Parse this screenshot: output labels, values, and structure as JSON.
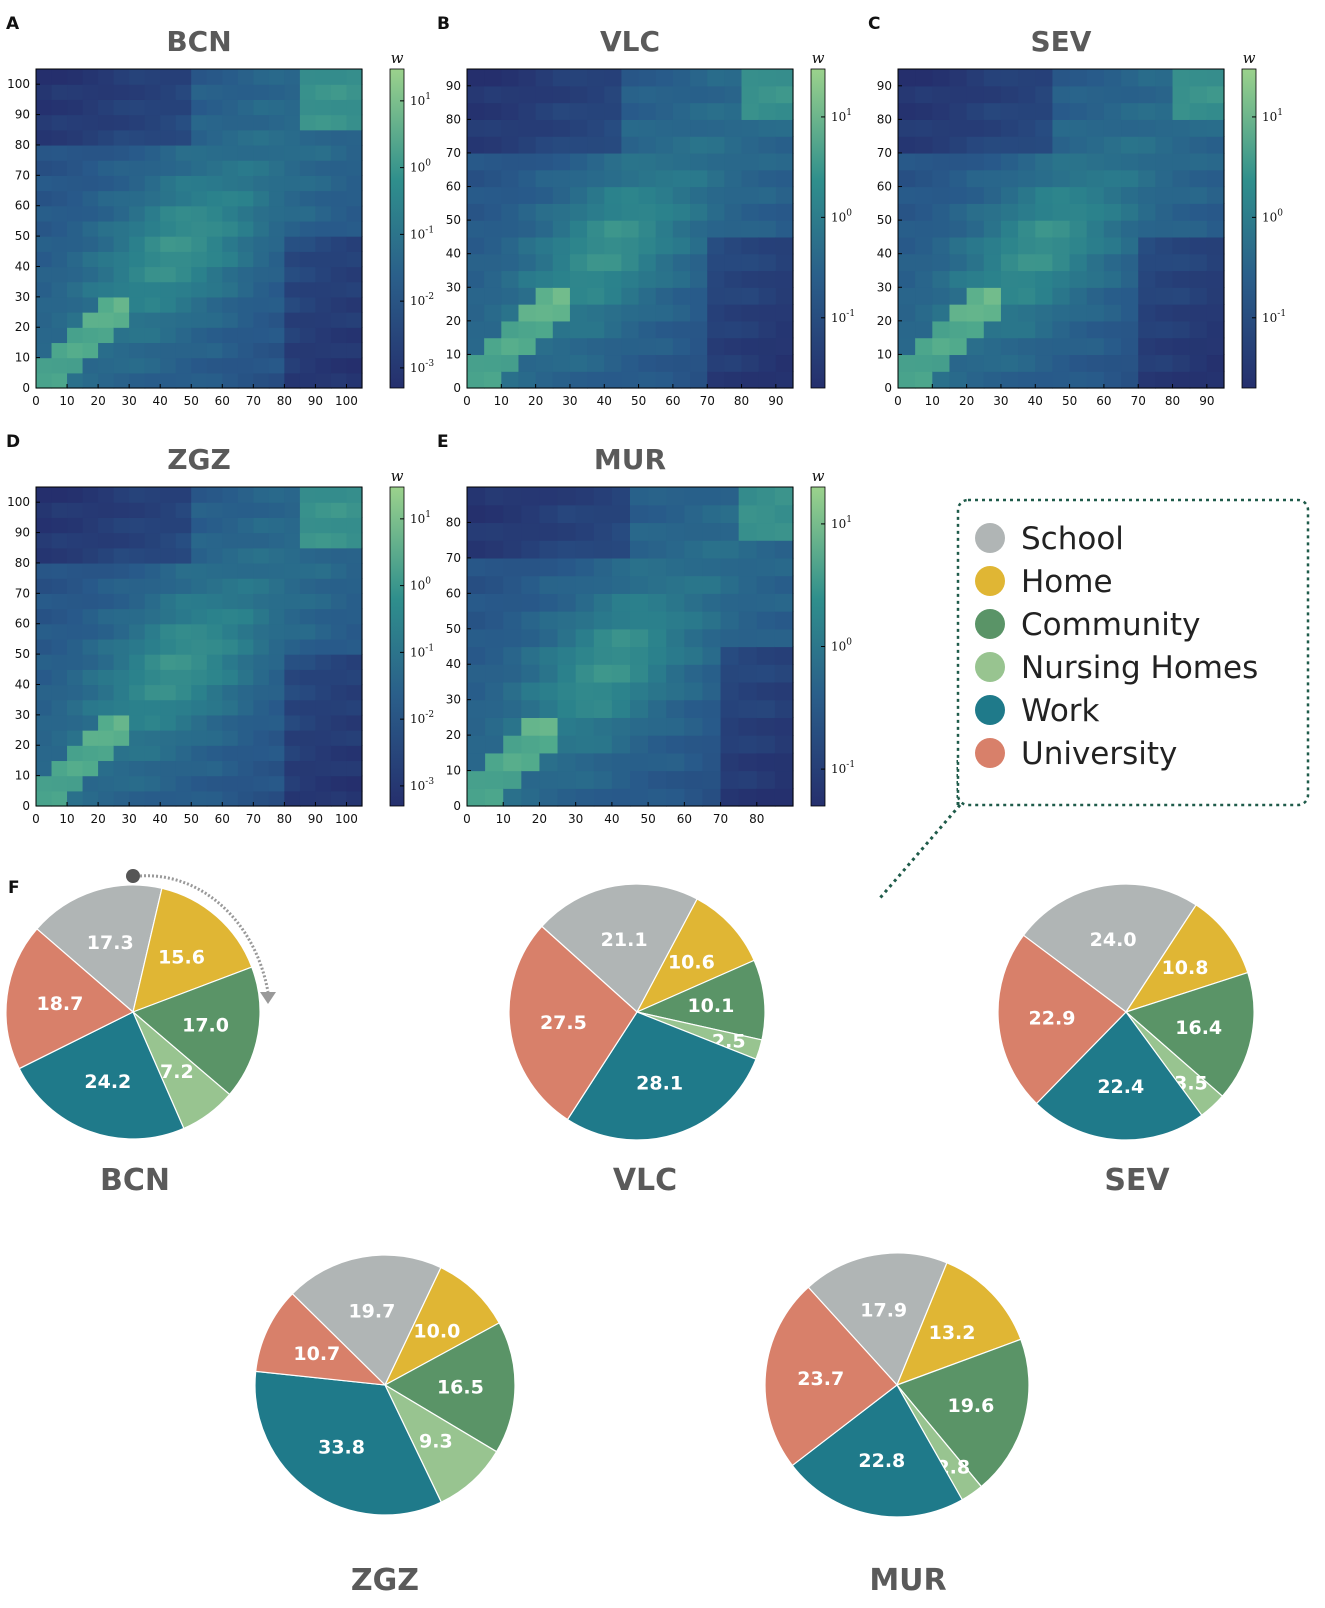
{
  "colors": {
    "School": "#b0b5b5",
    "Home": "#e0b634",
    "Community": "#5a9467",
    "Nursing Homes": "#98c490",
    "Work": "#1f7a8a",
    "University": "#d8806a",
    "cmap_low": "#24306f",
    "cmap_mid": "#2b8c8c",
    "cmap_high": "#9bd28c",
    "title_gray": "#5a5a5a",
    "callout": "#1f5b4a"
  },
  "legend": {
    "items": [
      {
        "label": "School",
        "color": "#b0b5b5"
      },
      {
        "label": "Home",
        "color": "#e0b634"
      },
      {
        "label": "Community",
        "color": "#5a9467"
      },
      {
        "label": "Nursing Homes",
        "color": "#98c490"
      },
      {
        "label": "Work",
        "color": "#1f7a8a"
      },
      {
        "label": "University",
        "color": "#d8806a"
      }
    ]
  },
  "chart_data": [
    {
      "panel": "A",
      "title": "BCN",
      "type": "heatmap",
      "xlim": [
        0,
        105
      ],
      "ylim": [
        0,
        105
      ],
      "xticks": [
        "0",
        "10",
        "20",
        "30",
        "40",
        "50",
        "60",
        "70",
        "80",
        "90",
        "100"
      ],
      "yticks": [
        "0",
        "10",
        "20",
        "30",
        "40",
        "50",
        "60",
        "70",
        "80",
        "90",
        "100"
      ],
      "colorbar": {
        "label": "w",
        "scale": "log",
        "range": [
          0.0005,
          30
        ],
        "ticks": [
          {
            "base": "10",
            "exp": "1",
            "value": 10
          },
          {
            "base": "10",
            "exp": "0",
            "value": 1
          },
          {
            "base": "10",
            "exp": "-1",
            "value": 0.1
          },
          {
            "base": "10",
            "exp": "-2",
            "value": 0.01
          },
          {
            "base": "10",
            "exp": "-3",
            "value": 0.001
          }
        ]
      }
    },
    {
      "panel": "B",
      "title": "VLC",
      "type": "heatmap",
      "xlim": [
        0,
        95
      ],
      "ylim": [
        0,
        95
      ],
      "xticks": [
        "0",
        "10",
        "20",
        "30",
        "40",
        "50",
        "60",
        "70",
        "80",
        "90"
      ],
      "yticks": [
        "0",
        "10",
        "20",
        "30",
        "40",
        "50",
        "60",
        "70",
        "80",
        "90"
      ],
      "colorbar": {
        "label": "w",
        "scale": "log",
        "range": [
          0.02,
          30
        ],
        "ticks": [
          {
            "base": "10",
            "exp": "1",
            "value": 10
          },
          {
            "base": "10",
            "exp": "0",
            "value": 1
          },
          {
            "base": "10",
            "exp": "-1",
            "value": 0.1
          }
        ]
      }
    },
    {
      "panel": "C",
      "title": "SEV",
      "type": "heatmap",
      "xlim": [
        0,
        95
      ],
      "ylim": [
        0,
        95
      ],
      "xticks": [
        "0",
        "10",
        "20",
        "30",
        "40",
        "50",
        "60",
        "70",
        "80",
        "90"
      ],
      "yticks": [
        "0",
        "10",
        "20",
        "30",
        "40",
        "50",
        "60",
        "70",
        "80",
        "90"
      ],
      "colorbar": {
        "label": "w",
        "scale": "log",
        "range": [
          0.02,
          30
        ],
        "ticks": [
          {
            "base": "10",
            "exp": "1",
            "value": 10
          },
          {
            "base": "10",
            "exp": "0",
            "value": 1
          },
          {
            "base": "10",
            "exp": "-1",
            "value": 0.1
          }
        ]
      }
    },
    {
      "panel": "D",
      "title": "ZGZ",
      "type": "heatmap",
      "xlim": [
        0,
        105
      ],
      "ylim": [
        0,
        105
      ],
      "xticks": [
        "0",
        "10",
        "20",
        "30",
        "40",
        "50",
        "60",
        "70",
        "80",
        "90",
        "100"
      ],
      "yticks": [
        "0",
        "10",
        "20",
        "30",
        "40",
        "50",
        "60",
        "70",
        "80",
        "90",
        "100"
      ],
      "colorbar": {
        "label": "w",
        "scale": "log",
        "range": [
          0.0005,
          30
        ],
        "ticks": [
          {
            "base": "10",
            "exp": "1",
            "value": 10
          },
          {
            "base": "10",
            "exp": "0",
            "value": 1
          },
          {
            "base": "10",
            "exp": "-1",
            "value": 0.1
          },
          {
            "base": "10",
            "exp": "-2",
            "value": 0.01
          },
          {
            "base": "10",
            "exp": "-3",
            "value": 0.001
          }
        ]
      }
    },
    {
      "panel": "E",
      "title": "MUR",
      "type": "heatmap",
      "xlim": [
        0,
        90
      ],
      "ylim": [
        0,
        90
      ],
      "xticks": [
        "0",
        "10",
        "20",
        "30",
        "40",
        "50",
        "60",
        "70",
        "80"
      ],
      "yticks": [
        "0",
        "10",
        "20",
        "30",
        "40",
        "50",
        "60",
        "70",
        "80"
      ],
      "colorbar": {
        "label": "w",
        "scale": "log",
        "range": [
          0.05,
          20
        ],
        "ticks": [
          {
            "base": "10",
            "exp": "1",
            "value": 10
          },
          {
            "base": "10",
            "exp": "0",
            "value": 1
          },
          {
            "base": "10",
            "exp": "-1",
            "value": 0.1
          }
        ]
      }
    },
    {
      "panel": "F",
      "title": "BCN",
      "type": "pie",
      "labels": [
        "School",
        "Home",
        "Community",
        "Nursing Homes",
        "Work",
        "University"
      ],
      "values": [
        17.3,
        15.6,
        17.0,
        7.2,
        24.2,
        18.7
      ],
      "value_labels": [
        "17.3",
        "15.6",
        "17.0",
        "7.2",
        "24.2",
        "18.7"
      ]
    },
    {
      "panel": "F",
      "title": "VLC",
      "type": "pie",
      "labels": [
        "School",
        "Home",
        "Community",
        "Nursing Homes",
        "Work",
        "University"
      ],
      "values": [
        21.1,
        10.6,
        10.1,
        2.5,
        28.1,
        27.5
      ],
      "value_labels": [
        "21.1",
        "10.6",
        "10.1",
        "2.5",
        "28.1",
        "27.5"
      ]
    },
    {
      "panel": "F",
      "title": "SEV",
      "type": "pie",
      "labels": [
        "School",
        "Home",
        "Community",
        "Nursing Homes",
        "Work",
        "University"
      ],
      "values": [
        24.0,
        10.8,
        16.4,
        3.5,
        22.4,
        22.9
      ],
      "value_labels": [
        "24.0",
        "10.8",
        "16.4",
        "3.5",
        "22.4",
        "22.9"
      ]
    },
    {
      "panel": "F",
      "title": "ZGZ",
      "type": "pie",
      "labels": [
        "School",
        "Home",
        "Community",
        "Nursing Homes",
        "Work",
        "University"
      ],
      "values": [
        19.7,
        10.0,
        16.5,
        9.3,
        33.8,
        10.7
      ],
      "value_labels": [
        "19.7",
        "10.0",
        "16.5",
        "9.3",
        "33.8",
        "10.7"
      ]
    },
    {
      "panel": "F",
      "title": "MUR",
      "type": "pie",
      "labels": [
        "School",
        "Home",
        "Community",
        "Nursing Homes",
        "Work",
        "University"
      ],
      "values": [
        17.9,
        13.2,
        19.6,
        2.8,
        22.8,
        23.7
      ],
      "value_labels": [
        "17.9",
        "13.2",
        "19.6",
        "2.8",
        "22.8",
        "23.7"
      ]
    }
  ]
}
